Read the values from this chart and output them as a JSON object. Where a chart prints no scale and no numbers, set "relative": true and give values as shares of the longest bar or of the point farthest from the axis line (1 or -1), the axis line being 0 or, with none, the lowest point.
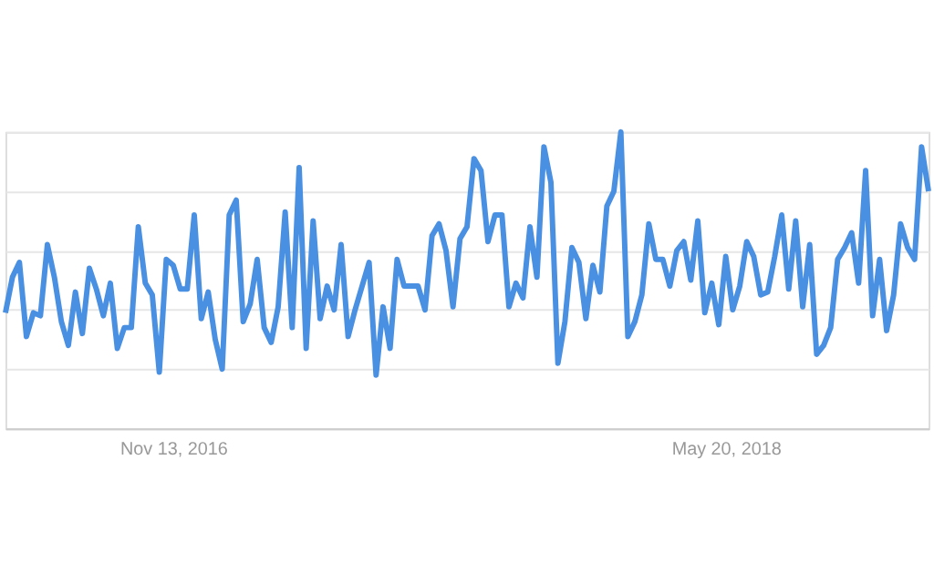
{
  "chart_data": {
    "type": "line",
    "relative": true,
    "grid": "y",
    "x": [
      "2016-05-29",
      "2016-06-05",
      "2016-06-12",
      "2016-06-19",
      "2016-06-26",
      "2016-07-03",
      "2016-07-10",
      "2016-07-17",
      "2016-07-24",
      "2016-07-31",
      "2016-08-07",
      "2016-08-14",
      "2016-08-21",
      "2016-08-28",
      "2016-09-04",
      "2016-09-11",
      "2016-09-18",
      "2016-09-25",
      "2016-10-02",
      "2016-10-09",
      "2016-10-16",
      "2016-10-23",
      "2016-10-30",
      "2016-11-06",
      "2016-11-13",
      "2016-11-20",
      "2016-11-27",
      "2016-12-04",
      "2016-12-11",
      "2016-12-18",
      "2016-12-25",
      "2017-01-01",
      "2017-01-08",
      "2017-01-15",
      "2017-01-22",
      "2017-01-29",
      "2017-02-05",
      "2017-02-12",
      "2017-02-19",
      "2017-02-26",
      "2017-03-05",
      "2017-03-12",
      "2017-03-19",
      "2017-03-26",
      "2017-04-02",
      "2017-04-09",
      "2017-04-16",
      "2017-04-23",
      "2017-04-30",
      "2017-05-07",
      "2017-05-14",
      "2017-05-21",
      "2017-05-28",
      "2017-06-04",
      "2017-06-11",
      "2017-06-18",
      "2017-06-25",
      "2017-07-02",
      "2017-07-09",
      "2017-07-16",
      "2017-07-23",
      "2017-07-30",
      "2017-08-06",
      "2017-08-13",
      "2017-08-20",
      "2017-08-27",
      "2017-09-03",
      "2017-09-10",
      "2017-09-17",
      "2017-09-24",
      "2017-10-01",
      "2017-10-08",
      "2017-10-15",
      "2017-10-22",
      "2017-10-29",
      "2017-11-05",
      "2017-11-12",
      "2017-11-19",
      "2017-11-26",
      "2017-12-03",
      "2017-12-10",
      "2017-12-17",
      "2017-12-24",
      "2017-12-31",
      "2018-01-07",
      "2018-01-14",
      "2018-01-21",
      "2018-01-28",
      "2018-02-04",
      "2018-02-11",
      "2018-02-18",
      "2018-02-25",
      "2018-03-04",
      "2018-03-11",
      "2018-03-18",
      "2018-03-25",
      "2018-04-01",
      "2018-04-08",
      "2018-04-15",
      "2018-04-22",
      "2018-04-29",
      "2018-05-06",
      "2018-05-13",
      "2018-05-20",
      "2018-05-27",
      "2018-06-03",
      "2018-06-10",
      "2018-06-17",
      "2018-06-24",
      "2018-07-01",
      "2018-07-08",
      "2018-07-15",
      "2018-07-22",
      "2018-07-29",
      "2018-08-05",
      "2018-08-12",
      "2018-08-19",
      "2018-08-26",
      "2018-09-02",
      "2018-09-09",
      "2018-09-16",
      "2018-09-23",
      "2018-09-30",
      "2018-10-07",
      "2018-10-14",
      "2018-10-21",
      "2018-10-28",
      "2018-11-04",
      "2018-11-11",
      "2018-11-18",
      "2018-11-25",
      "2018-12-02",
      "2018-12-09"
    ],
    "series": [
      {
        "color": "#4a90e2",
        "values": [
          0.39,
          0.51,
          0.56,
          0.31,
          0.39,
          0.38,
          0.62,
          0.51,
          0.36,
          0.28,
          0.46,
          0.32,
          0.54,
          0.47,
          0.38,
          0.49,
          0.27,
          0.34,
          0.34,
          0.68,
          0.49,
          0.45,
          0.19,
          0.57,
          0.55,
          0.47,
          0.47,
          0.72,
          0.37,
          0.46,
          0.3,
          0.2,
          0.72,
          0.77,
          0.36,
          0.42,
          0.57,
          0.34,
          0.29,
          0.41,
          0.73,
          0.34,
          0.88,
          0.27,
          0.7,
          0.37,
          0.48,
          0.4,
          0.62,
          0.31,
          0.4,
          0.48,
          0.56,
          0.18,
          0.41,
          0.27,
          0.57,
          0.48,
          0.48,
          0.48,
          0.4,
          0.65,
          0.69,
          0.6,
          0.41,
          0.64,
          0.68,
          0.91,
          0.87,
          0.63,
          0.72,
          0.72,
          0.41,
          0.49,
          0.44,
          0.68,
          0.51,
          0.95,
          0.83,
          0.22,
          0.36,
          0.61,
          0.56,
          0.37,
          0.55,
          0.46,
          0.75,
          0.8,
          1.0,
          0.31,
          0.36,
          0.45,
          0.69,
          0.57,
          0.57,
          0.48,
          0.6,
          0.63,
          0.5,
          0.7,
          0.39,
          0.49,
          0.35,
          0.58,
          0.4,
          0.48,
          0.63,
          0.58,
          0.45,
          0.46,
          0.58,
          0.72,
          0.47,
          0.7,
          0.41,
          0.62,
          0.25,
          0.28,
          0.34,
          0.57,
          0.61,
          0.66,
          0.49,
          0.87,
          0.38,
          0.57,
          0.33,
          0.45,
          0.69,
          0.61,
          0.57,
          0.95,
          0.8
        ]
      }
    ],
    "xlim": [
      "2016-05-29",
      "2018-12-09"
    ],
    "xticks": [
      {
        "value": "2016-11-13",
        "label": "Nov 13, 2016"
      },
      {
        "value": "2018-05-20",
        "label": "May 20, 2018"
      }
    ]
  }
}
